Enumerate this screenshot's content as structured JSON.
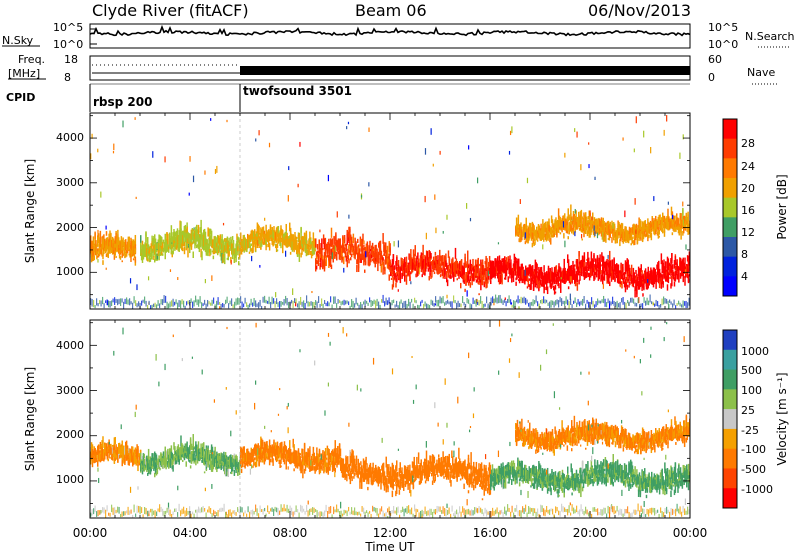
{
  "header": {
    "station": "Clyde River (fitACF)",
    "beam": "Beam 06",
    "date": "06/Nov/2013"
  },
  "nsky_panel": {
    "left_label": "N.Sky",
    "right_label": "N.Search",
    "left_ticks": [
      "10^5",
      "10^0"
    ],
    "right_ticks": [
      "10^5",
      "10^0"
    ]
  },
  "freq_panel": {
    "left_label_line1": "Freq.",
    "left_label_line2": "[MHz]",
    "right_label": "Nave",
    "left_ticks": [
      "18",
      "8"
    ],
    "right_ticks": [
      "60",
      "0"
    ]
  },
  "cpid_panel": {
    "label": "CPID",
    "programs": [
      {
        "name": "rbsp 200",
        "start_hour": 0
      },
      {
        "name": "twofsound 3501",
        "start_hour": 6
      }
    ]
  },
  "power_panel": {
    "ylabel": "Slant Range [km]",
    "yticks": [
      "4000",
      "3000",
      "2000",
      "1000"
    ],
    "colorbar_title": "Power [dB]",
    "colorbar_labels": [
      "28",
      "24",
      "20",
      "16",
      "12",
      "8",
      "4"
    ],
    "colorbar_colors": [
      "#ff0000",
      "#ff3c00",
      "#ff7a00",
      "#f0a000",
      "#a8c82a",
      "#3f9e64",
      "#2c58a6",
      "#0022dd",
      "#0000ff"
    ]
  },
  "velocity_panel": {
    "ylabel": "Slant Range [km]",
    "yticks": [
      "4000",
      "3000",
      "2000",
      "1000"
    ],
    "colorbar_title": "Velocity [m s⁻¹]",
    "colorbar_labels": [
      "1000",
      "500",
      "100",
      "25",
      "-25",
      "-100",
      "-500",
      "-1000"
    ],
    "colorbar_colors": [
      "#2040c0",
      "#3aa0a0",
      "#3f9e64",
      "#8cc04a",
      "#c8c8c8",
      "#f5a000",
      "#ff7a00",
      "#ff4400",
      "#ff0000"
    ]
  },
  "time_axis": {
    "xlabel": "Time UT",
    "tick_labels": [
      "00:00",
      "04:00",
      "08:00",
      "12:00",
      "16:00",
      "20:00",
      "00:00"
    ]
  },
  "chart_data": [
    {
      "type": "heatmap",
      "title": "Power [dB]",
      "xlabel": "Time UT",
      "ylabel": "Slant Range [km]",
      "xlim": [
        0,
        24
      ],
      "ylim": [
        180,
        4560
      ],
      "colorbar_range": [
        0,
        30
      ],
      "regions": [
        {
          "start_hour": 0.0,
          "end_hour": 1.8,
          "range_center_km": 1400,
          "half_width_km": 350,
          "value_db": 20
        },
        {
          "start_hour": 2.0,
          "end_hour": 6.0,
          "range_center_km": 1550,
          "half_width_km": 400,
          "value_db": 16
        },
        {
          "start_hour": 6.0,
          "end_hour": 9.0,
          "range_center_km": 1600,
          "half_width_km": 350,
          "value_db": 18
        },
        {
          "start_hour": 9.0,
          "end_hour": 12.0,
          "range_center_km": 1350,
          "half_width_km": 500,
          "value_db": 26
        },
        {
          "start_hour": 12.0,
          "end_hour": 16.0,
          "range_center_km": 1000,
          "half_width_km": 400,
          "value_db": 28
        },
        {
          "start_hour": 16.0,
          "end_hour": 24.0,
          "range_center_km": 900,
          "half_width_km": 400,
          "value_db": 30
        },
        {
          "start_hour": 17.0,
          "end_hour": 24.0,
          "range_center_km": 1900,
          "half_width_km": 300,
          "value_db": 20
        }
      ]
    },
    {
      "type": "heatmap",
      "title": "Velocity [m s⁻¹]",
      "xlabel": "Time UT",
      "ylabel": "Slant Range [km]",
      "xlim": [
        0,
        24
      ],
      "ylim": [
        180,
        4560
      ],
      "colorbar_range": [
        -1000,
        1000
      ],
      "regions": [
        {
          "start_hour": 0.0,
          "end_hour": 2.0,
          "range_center_km": 1450,
          "half_width_km": 300,
          "value_ms": -100
        },
        {
          "start_hour": 2.0,
          "end_hour": 6.0,
          "range_center_km": 1400,
          "half_width_km": 300,
          "value_ms": 100
        },
        {
          "start_hour": 6.0,
          "end_hour": 10.0,
          "range_center_km": 1450,
          "half_width_km": 350,
          "value_ms": -150
        },
        {
          "start_hour": 10.0,
          "end_hour": 16.0,
          "range_center_km": 1100,
          "half_width_km": 400,
          "value_ms": -300
        },
        {
          "start_hour": 16.0,
          "end_hour": 24.0,
          "range_center_km": 1000,
          "half_width_km": 350,
          "value_ms": 120
        },
        {
          "start_hour": 17.0,
          "end_hour": 24.0,
          "range_center_km": 1900,
          "half_width_km": 300,
          "value_ms": -120
        }
      ]
    }
  ]
}
